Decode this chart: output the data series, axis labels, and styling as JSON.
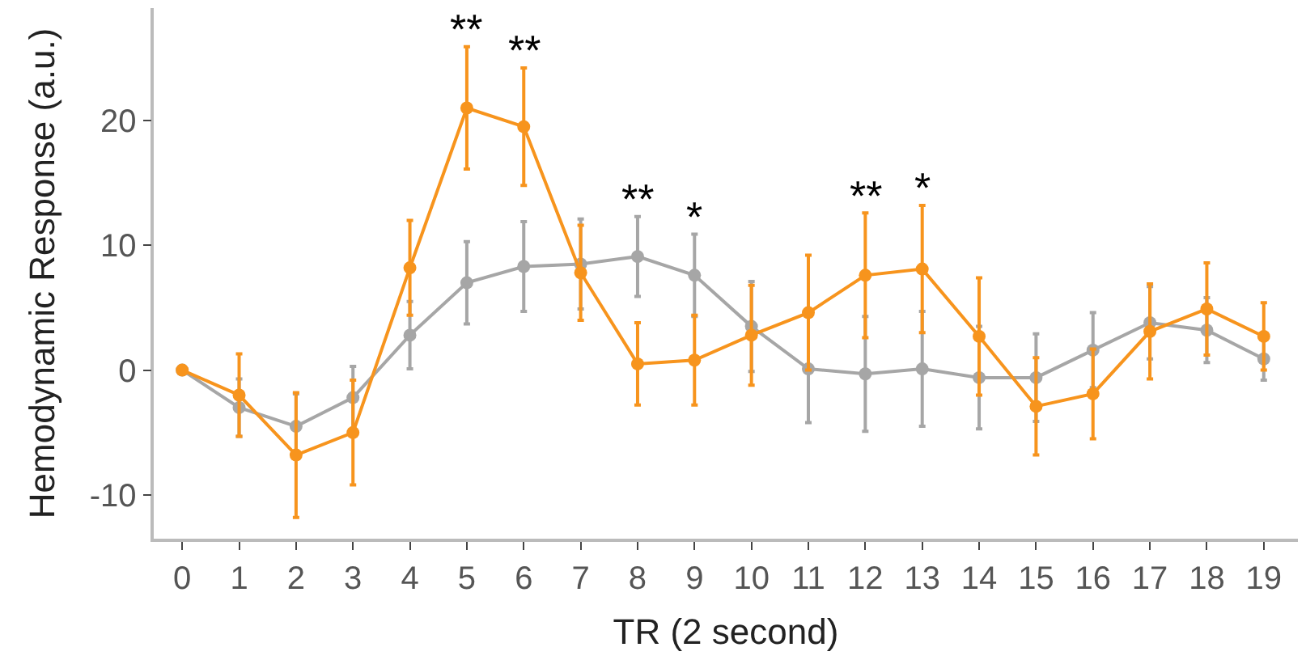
{
  "chart_data": {
    "type": "line",
    "xlabel": "TR (2 second)",
    "ylabel": "Hemodynamic Response (a.u.)",
    "x": [
      0,
      1,
      2,
      3,
      4,
      5,
      6,
      7,
      8,
      9,
      10,
      11,
      12,
      13,
      14,
      15,
      16,
      17,
      18,
      19
    ],
    "xlim": [
      -0.5,
      19.6
    ],
    "xticks": [
      0,
      1,
      2,
      3,
      4,
      5,
      6,
      7,
      8,
      9,
      10,
      11,
      12,
      13,
      14,
      15,
      16,
      17,
      18,
      19
    ],
    "ylim": [
      -13.5,
      29
    ],
    "yticks": [
      -10,
      0,
      10,
      20
    ],
    "marker": "circle",
    "line_style": "solid",
    "series": [
      {
        "color": "#a6a6a6",
        "values": [
          0,
          -3,
          -4.5,
          -2.2,
          2.8,
          7,
          8.3,
          8.5,
          9.1,
          7.6,
          3.5,
          0.1,
          -0.3,
          0.1,
          -0.6,
          -0.6,
          1.6,
          3.8,
          3.2,
          0.9
        ],
        "errors": [
          null,
          2.3,
          2.6,
          2.5,
          2.7,
          3.3,
          3.6,
          3.6,
          3.2,
          3.3,
          3.6,
          4.3,
          4.6,
          4.6,
          4.1,
          3.5,
          3,
          2.9,
          2.6,
          1.7
        ]
      },
      {
        "color": "#f7941d",
        "values": [
          0,
          -2,
          -6.8,
          -5,
          8.2,
          21,
          19.5,
          7.8,
          0.5,
          0.8,
          2.8,
          4.6,
          7.6,
          8.1,
          2.7,
          -2.9,
          -1.9,
          3.1,
          4.9,
          2.7
        ],
        "errors": [
          null,
          3.3,
          5,
          4.2,
          3.8,
          4.9,
          4.7,
          3.8,
          3.3,
          3.6,
          4,
          4.6,
          5,
          5.1,
          4.7,
          3.9,
          3.6,
          3.8,
          3.7,
          2.7
        ]
      }
    ],
    "annotations": [
      {
        "text": "**",
        "x": 5,
        "y": 21
      },
      {
        "text": "**",
        "x": 6,
        "y": 19.5
      },
      {
        "text": "**",
        "x": 8,
        "y": 9.1
      },
      {
        "text": "*",
        "x": 9,
        "y": 7.6
      },
      {
        "text": "**",
        "x": 12,
        "y": 7.6
      },
      {
        "text": "*",
        "x": 13,
        "y": 8.1
      }
    ]
  }
}
